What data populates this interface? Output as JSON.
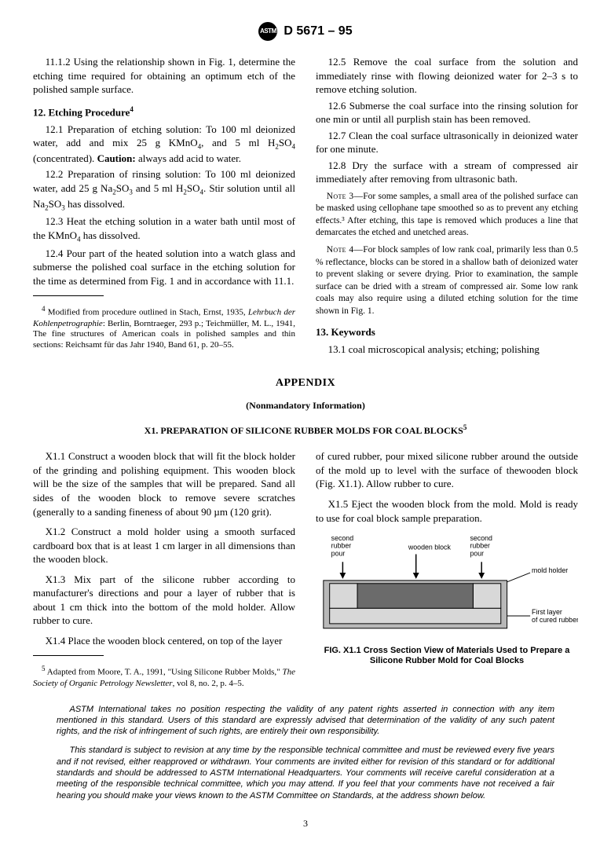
{
  "header": {
    "designation": "D 5671 – 95",
    "logo_text": "ASTM"
  },
  "body": {
    "p11_1_2": "11.1.2 Using the relationship shown in Fig. 1, determine the etching time required for obtaining an optimum etch of the polished sample surface.",
    "s12_head": "12. Etching Procedure",
    "s12_foot_mark": "4",
    "p12_1_a": "12.1 Preparation of etching solution: To 100 ml deionized water, add and mix 25 g KMnO",
    "p12_1_b": ", and 5 ml H",
    "p12_1_c": "SO",
    "p12_1_d": " (concentrated). ",
    "caution_label": "Caution:",
    "caution_text": " always add acid to water.",
    "p12_2_a": "12.2 Preparation of rinsing solution: To 100 ml deionized water, add 25 g Na",
    "p12_2_b": "SO",
    "p12_2_c": " and 5 ml H",
    "p12_2_d": "SO",
    "p12_2_e": ". Stir solution until all Na",
    "p12_2_f": "SO",
    "p12_2_g": " has dissolved.",
    "p12_3_a": "12.3 Heat the etching solution in a water bath until most of the KMnO",
    "p12_3_b": " has dissolved.",
    "p12_4": "12.4 Pour part of the heated solution into a watch glass and submerse the polished coal surface in the etching solution for the time as determined from Fig. 1 and in accordance with 11.1.",
    "p12_5": "12.5 Remove the coal surface from the solution and immediately rinse with flowing deionized water for 2–3 s to remove etching solution.",
    "p12_6": "12.6 Submerse the coal surface into the rinsing solution for one min or until all purplish stain has been removed.",
    "p12_7": "12.7 Clean the coal surface ultrasonically in deionized water for one minute.",
    "p12_8": "12.8 Dry the surface with a stream of compressed air immediately after removing from ultrasonic bath.",
    "note3_lead": "Note 3—",
    "note3": "For some samples, a small area of the polished surface can be masked using cellophane tape smoothed so as to prevent any etching effects.³ After etching, this tape is removed which produces a line that demarcates the etched and unetched areas.",
    "note4_lead": "Note 4—",
    "note4": "For block samples of low rank coal, primarily less than 0.5 % reflectance, blocks can be stored in a shallow bath of deionized water to prevent slaking or severe drying. Prior to examination, the sample surface can be dried with a stream of compressed air. Some low rank coals may also require using a diluted etching solution for the time shown in Fig. 1.",
    "s13_head": "13. Keywords",
    "p13_1": "13.1 coal microscopical analysis; etching; polishing",
    "footnote4_a": "Modified from procedure outlined in Stach, Ernst, 1935, ",
    "footnote4_i": "Lehrbuch der Kohlenpetrographie",
    "footnote4_b": ": Berlin, Borntraeger, 293 p.; Teichmüller, M. L., 1941, The fine structures of American coals in polished samples and thin sections: Reichsamt für das Jahr 1940, Band 61, p. 20–55."
  },
  "appendix": {
    "title": "APPENDIX",
    "sub": "(Nonmandatory Information)",
    "sec": "X1. PREPARATION OF SILICONE RUBBER MOLDS FOR COAL BLOCKS",
    "sec_foot_mark": "5",
    "x1_1": "X1.1  Construct a wooden block that will fit the block holder of the grinding and polishing equipment. This wooden block will be the size of the samples that will be prepared. Sand all sides of the wooden block to remove severe scratches (generally to a sanding fineness of about 90 µm (120 grit).",
    "x1_2": "X1.2  Construct a mold holder using a smooth surfaced cardboard box that is at least 1 cm larger in all dimensions than the wooden block.",
    "x1_3": "X1.3  Mix part of the silicone rubber according to manufacturer's directions and pour a layer of rubber that is about 1 cm thick into the bottom of the mold holder. Allow rubber to cure.",
    "x1_4": "X1.4  Place the wooden block centered, on top of the layer",
    "x1_4b": "of cured rubber, pour mixed silicone rubber around the outside of the mold up to level with the surface of thewooden block (Fig. X1.1). Allow rubber to cure.",
    "x1_5": "X1.5  Eject the wooden block from the mold. Mold is ready to use for coal block sample preparation.",
    "footnote5_a": "Adapted from Moore, T. A., 1991, \"Using Silicone Rubber Molds,\" ",
    "footnote5_i": "The Society of Organic Petrology Newsletter",
    "footnote5_b": ", vol 8, no. 2, p. 4–5.",
    "fig": {
      "caption": "FIG. X1.1 Cross Section View of Materials Used to Prepare a Silicone Rubber Mold for Coal Blocks",
      "labels": {
        "second_pour_l": "second\nrubber\npour",
        "second_pour_r": "second\nrubber\npour",
        "wooden_block": "wooden block",
        "mold_holder": "mold holder",
        "first_layer": "First layer\nof cured rubber"
      },
      "colors": {
        "holder_fill": "#b8b8b8",
        "block_fill": "#6b6b6b",
        "rubber_fill": "#d8d8d8",
        "stroke": "#000000"
      }
    }
  },
  "disclaimer": {
    "p1": "ASTM International takes no position respecting the validity of any patent rights asserted in connection with any item mentioned in this standard. Users of this standard are expressly advised that determination of the validity of any such patent rights, and the risk of infringement of such rights, are entirely their own responsibility.",
    "p2": "This standard is subject to revision at any time by the responsible technical committee and must be reviewed every five years and if not revised, either reapproved or withdrawn. Your comments are invited either for revision of this standard or for additional standards and should be addressed to ASTM International Headquarters. Your comments will receive careful consideration at a meeting of the responsible technical committee, which you may attend. If you feel that your comments have not received a fair hearing you should make your views known to the ASTM Committee on Standards, at the address shown below."
  },
  "page_number": "3"
}
